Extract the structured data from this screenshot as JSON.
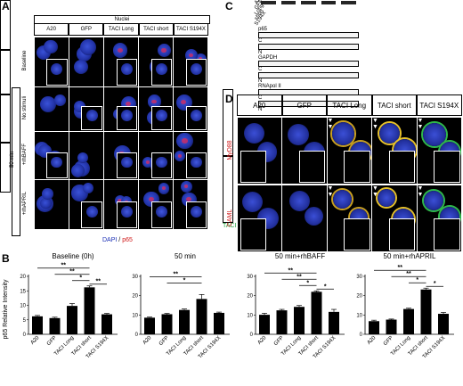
{
  "panels": {
    "A": "A",
    "B": "B",
    "C": "C",
    "D": "D"
  },
  "panelA": {
    "top_header": "Nuclei",
    "columns": [
      "A20",
      "GFP",
      "TACI Long",
      "TACI short",
      "TACI S194X"
    ],
    "rows": [
      "Baseline",
      "No stimuli",
      "+rhBAFF",
      "+rhAPRIL"
    ],
    "group_label": "50 min",
    "legend_dapi": "DAPI",
    "legend_sep": " / ",
    "legend_p65": "p65"
  },
  "panelC": {
    "columns": [
      "A20",
      "GFP",
      "Long",
      "short",
      "S194X"
    ],
    "blots": [
      {
        "name": "p65",
        "fractions": [
          "C",
          "N"
        ]
      },
      {
        "name": "GAPDH",
        "fractions": [
          "C",
          "N"
        ]
      },
      {
        "name": "RNApol II",
        "fractions": [
          "C",
          "N"
        ]
      }
    ]
  },
  "panelD": {
    "columns": [
      "A20",
      "GFP",
      "TACI Long",
      "TACI short",
      "TACI S194X"
    ],
    "rows": [
      "MyD88",
      "CAML"
    ],
    "legend_taci": "TACI",
    "legend_sep": " / ",
    "legend_dapi": "DAPI"
  },
  "panelB": {
    "ylabel": "p65 Relative Intensity",
    "sig": [
      "**",
      "*"
    ],
    "colors": {
      "bar": "#000000"
    }
  },
  "chart_data": [
    {
      "type": "bar",
      "title": "Baseline (0h)",
      "categories": [
        "A20",
        "GFP",
        "TACI Long",
        "TACI short",
        "TACI S194X"
      ],
      "values": [
        6.2,
        5.6,
        9.8,
        16.2,
        6.9
      ],
      "errors": [
        0.3,
        0.3,
        0.8,
        0.5,
        0.3
      ],
      "ylim": [
        0,
        20
      ],
      "yticks": [
        "0",
        "5",
        "10",
        "15",
        "20"
      ],
      "ylabel": "p65 Relative Intensity"
    },
    {
      "type": "bar",
      "title": "50 min",
      "categories": [
        "A20",
        "GFP",
        "TACI Long",
        "TACI short",
        "TACI S194X"
      ],
      "values": [
        8.6,
        10.4,
        12.6,
        18.3,
        11.1
      ],
      "errors": [
        0.3,
        0.4,
        0.5,
        2.3,
        0.4
      ],
      "ylim": [
        0,
        30
      ],
      "yticks": [
        "0",
        "10",
        "20",
        "30"
      ]
    },
    {
      "type": "bar",
      "title": "50 min+rhBAFF",
      "categories": [
        "A20",
        "GFP",
        "TACI Long",
        "TACI short",
        "TACI S194X"
      ],
      "values": [
        10.1,
        12.4,
        14.2,
        22.0,
        11.6
      ],
      "errors": [
        0.8,
        0.5,
        0.7,
        0.5,
        1.3
      ],
      "ylim": [
        0,
        30
      ],
      "yticks": [
        "0",
        "10",
        "20",
        "30"
      ]
    },
    {
      "type": "bar",
      "title": "50 min+rhAPRIL",
      "categories": [
        "A20",
        "GFP",
        "TACI Long",
        "TACI short",
        "TACI S194X"
      ],
      "values": [
        6.8,
        7.6,
        13.1,
        23.2,
        10.6
      ],
      "errors": [
        0.5,
        0.3,
        0.4,
        0.7,
        0.7
      ],
      "ylim": [
        0,
        30
      ],
      "yticks": [
        "0",
        "10",
        "20",
        "30"
      ]
    }
  ]
}
